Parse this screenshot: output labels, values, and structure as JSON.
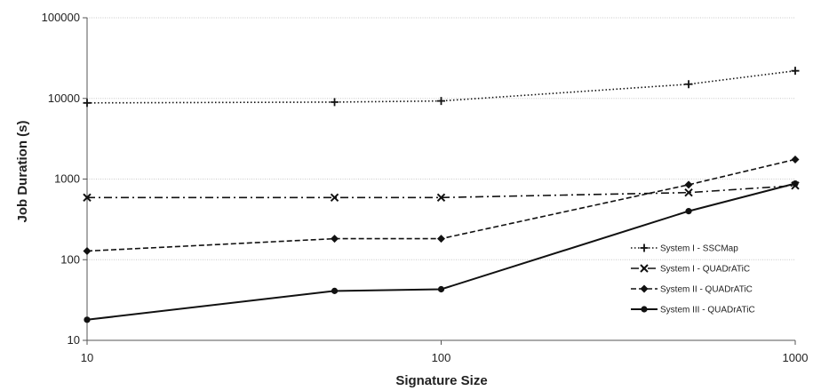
{
  "chart_data": {
    "type": "line",
    "xlabel": "Signature Size",
    "ylabel": "Job Duration (s)",
    "xscale": "log",
    "yscale": "log",
    "xlim": [
      10,
      1000
    ],
    "ylim": [
      10,
      100000
    ],
    "x_ticks": [
      "10",
      "100",
      "1000"
    ],
    "y_ticks": [
      "10",
      "100",
      "1000",
      "10000",
      "100000"
    ],
    "grid": "horizontal",
    "legend_position": "right",
    "series": [
      {
        "name": "System I - SSCMap",
        "marker": "plus",
        "line_style": "dotted",
        "x": [
          10,
          50,
          100,
          500,
          1000
        ],
        "y": [
          8800,
          9000,
          9300,
          15000,
          22000
        ]
      },
      {
        "name": "System I - QUADrATiC",
        "marker": "cross",
        "line_style": "dash-dot",
        "x": [
          10,
          50,
          100,
          500,
          1000
        ],
        "y": [
          590,
          590,
          590,
          680,
          830
        ]
      },
      {
        "name": "System II - QUADrATiC",
        "marker": "diamond",
        "line_style": "dashed",
        "x": [
          10,
          50,
          100,
          500,
          1000
        ],
        "y": [
          128,
          182,
          182,
          850,
          1750
        ]
      },
      {
        "name": "System III - QUADrATiC",
        "marker": "circle",
        "line_style": "solid",
        "x": [
          10,
          50,
          100,
          500,
          1000
        ],
        "y": [
          18,
          41,
          43,
          400,
          880
        ]
      }
    ]
  }
}
